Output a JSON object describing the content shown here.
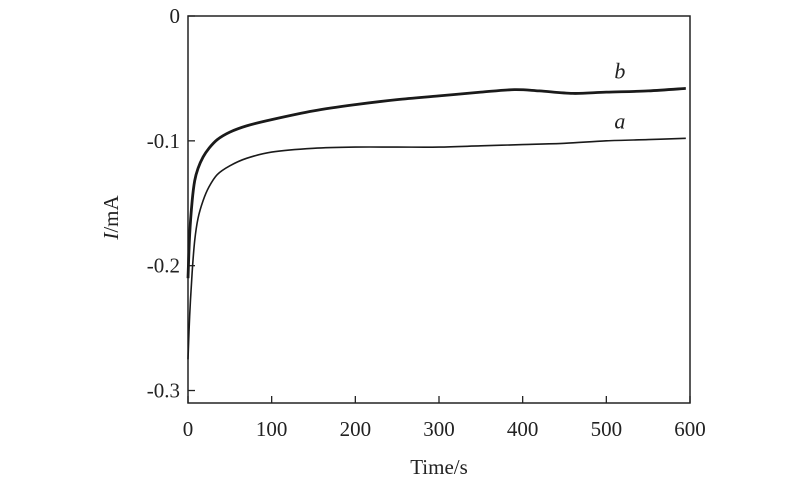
{
  "chart_data": {
    "type": "line",
    "title": "",
    "xlabel": "Time/s",
    "ylabel_italic": "I",
    "ylabel_rest": "/mA",
    "xlim": [
      0,
      600
    ],
    "ylim": [
      -0.31,
      0
    ],
    "xticks": [
      0,
      100,
      200,
      300,
      400,
      500,
      600
    ],
    "xtick_labels": [
      "0",
      "100",
      "200",
      "300",
      "400",
      "500",
      "600"
    ],
    "yticks": [
      0,
      -0.1,
      -0.2,
      -0.3
    ],
    "ytick_labels": [
      "0",
      "-0.1",
      "-0.2",
      "-0.3"
    ],
    "grid": false,
    "legend": "none",
    "series": [
      {
        "name": "a",
        "x": [
          0,
          2,
          5,
          8,
          12,
          18,
          25,
          35,
          50,
          70,
          100,
          150,
          200,
          250,
          300,
          350,
          400,
          450,
          500,
          550,
          595
        ],
        "y": [
          -0.275,
          -0.24,
          -0.205,
          -0.18,
          -0.162,
          -0.148,
          -0.137,
          -0.127,
          -0.12,
          -0.114,
          -0.109,
          -0.106,
          -0.105,
          -0.105,
          -0.105,
          -0.104,
          -0.103,
          -0.102,
          -0.1,
          -0.099,
          -0.098
        ]
      },
      {
        "name": "b",
        "x": [
          0,
          2,
          5,
          8,
          12,
          18,
          25,
          35,
          50,
          70,
          100,
          150,
          200,
          250,
          300,
          350,
          390,
          420,
          460,
          500,
          550,
          595
        ],
        "y": [
          -0.21,
          -0.175,
          -0.148,
          -0.132,
          -0.122,
          -0.113,
          -0.106,
          -0.099,
          -0.093,
          -0.088,
          -0.083,
          -0.076,
          -0.071,
          -0.067,
          -0.064,
          -0.061,
          -0.059,
          -0.06,
          -0.062,
          -0.061,
          -0.06,
          -0.058
        ]
      }
    ]
  }
}
